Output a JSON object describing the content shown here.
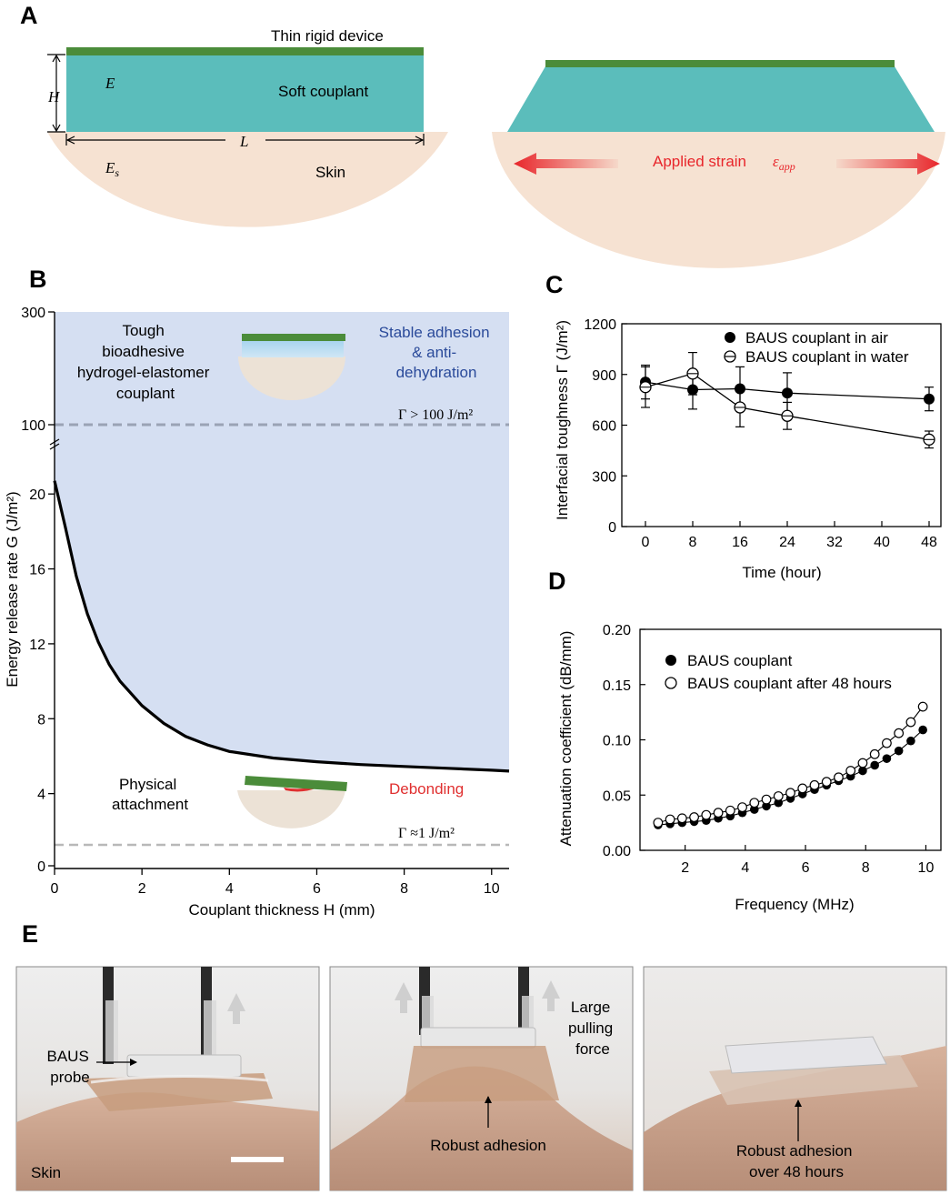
{
  "colors": {
    "device_green": "#4b8c3a",
    "couplant_teal": "#5bbdbb",
    "skin_beige": "#f6e2d2",
    "region_blue": "#d5dff2",
    "curve_black": "#000000",
    "debond_red": "#e03030",
    "stable_blue": "#2a4a9a",
    "dash_gray": "#9aa3b5",
    "arrow_red": "#e8262b"
  },
  "panelA": {
    "label": "A",
    "device": "Thin rigid device",
    "E": "E",
    "couplant": "Soft couplant",
    "H": "H",
    "L": "L",
    "Es_main": "E",
    "Es_sub": "s",
    "skin": "Skin",
    "strain_text": "Applied strain",
    "strain_sym_main": "ε",
    "strain_sym_sub": "app"
  },
  "panelB": {
    "label": "B",
    "tough_lines": [
      "Tough",
      "bioadhesive",
      "hydrogel-elastomer",
      "couplant"
    ],
    "stable_lines": [
      "Stable adhesion",
      "& anti-",
      "dehydration"
    ],
    "gamma_high": "Γ > 100 J/m²",
    "physical_lines": [
      "Physical",
      "attachment"
    ],
    "debonding": "Debonding",
    "gamma_low": "Γ ≈1 J/m²"
  },
  "panelE": {
    "label": "E",
    "baus_lines": [
      "BAUS",
      "probe"
    ],
    "skin": "Skin",
    "pull_lines": [
      "Large",
      "pulling",
      "force"
    ],
    "robust": "Robust adhesion",
    "robust48_lines": [
      "Robust adhesion",
      "over 48 hours"
    ]
  },
  "chart_data": [
    {
      "id": "B",
      "type": "line",
      "title": "",
      "xlabel": "Couplant thickness H (mm)",
      "ylabel": "Energy release rate G (J/m²)",
      "xlim": [
        0,
        10.4
      ],
      "ylim_lower": [
        0,
        22
      ],
      "ylim_upper": [
        100,
        300
      ],
      "x_ticks": [
        0,
        2,
        4,
        6,
        8,
        10
      ],
      "y_ticks": [
        0,
        4,
        8,
        12,
        16,
        20,
        100,
        300
      ],
      "series": [
        {
          "name": "G",
          "x": [
            0,
            0.25,
            0.5,
            0.75,
            1,
            1.25,
            1.5,
            2,
            2.5,
            3,
            3.5,
            4,
            5,
            6,
            7,
            8,
            9,
            10,
            10.4
          ],
          "y": [
            20.7,
            18.2,
            15.6,
            13.6,
            12.1,
            10.9,
            10.0,
            8.7,
            7.75,
            7.05,
            6.6,
            6.25,
            5.9,
            5.7,
            5.55,
            5.45,
            5.35,
            5.25,
            5.2
          ]
        }
      ],
      "thresholds": [
        100,
        1
      ]
    },
    {
      "id": "C",
      "type": "line",
      "xlabel": "Time (hour)",
      "ylabel": "Interfacial toughness Γ (J/m²)",
      "xlim": [
        -4,
        50
      ],
      "ylim": [
        0,
        1200
      ],
      "x_ticks": [
        0,
        8,
        16,
        24,
        32,
        40,
        48
      ],
      "y_ticks": [
        0,
        300,
        600,
        900,
        1200
      ],
      "series": [
        {
          "name": "BAUS couplant in air",
          "marker": "filled",
          "x": [
            0,
            8,
            16,
            24,
            48
          ],
          "y": [
            855,
            810,
            815,
            790,
            755
          ],
          "err": [
            100,
            115,
            130,
            120,
            70
          ]
        },
        {
          "name": "BAUS couplant in water",
          "marker": "open",
          "x": [
            0,
            8,
            16,
            24,
            48
          ],
          "y": [
            825,
            905,
            705,
            655,
            515
          ],
          "err": [
            120,
            125,
            115,
            80,
            50
          ]
        }
      ]
    },
    {
      "id": "D",
      "type": "line",
      "xlabel": "Frequency (MHz)",
      "ylabel": "Attenuation coefficient (dB/mm)",
      "xlim": [
        0.5,
        10.5
      ],
      "ylim": [
        0,
        0.2
      ],
      "x_ticks": [
        2,
        4,
        6,
        8,
        10
      ],
      "y_ticks": [
        0.0,
        0.05,
        0.1,
        0.15,
        0.2
      ],
      "y_tick_labels": [
        "0.00",
        "0.05",
        "0.10",
        "0.15",
        "0.20"
      ],
      "series": [
        {
          "name": "BAUS couplant",
          "marker": "filled",
          "x": [
            1.1,
            1.5,
            1.9,
            2.3,
            2.7,
            3.1,
            3.5,
            3.9,
            4.3,
            4.7,
            5.1,
            5.5,
            5.9,
            6.3,
            6.7,
            7.1,
            7.5,
            7.9,
            8.3,
            8.7,
            9.1,
            9.5,
            9.9
          ],
          "y": [
            0.023,
            0.024,
            0.025,
            0.026,
            0.027,
            0.029,
            0.031,
            0.034,
            0.037,
            0.04,
            0.043,
            0.047,
            0.051,
            0.055,
            0.059,
            0.063,
            0.067,
            0.072,
            0.077,
            0.083,
            0.09,
            0.099,
            0.109
          ]
        },
        {
          "name": "BAUS couplant after 48 hours",
          "marker": "open",
          "x": [
            1.1,
            1.5,
            1.9,
            2.3,
            2.7,
            3.1,
            3.5,
            3.9,
            4.3,
            4.7,
            5.1,
            5.5,
            5.9,
            6.3,
            6.7,
            7.1,
            7.5,
            7.9,
            8.3,
            8.7,
            9.1,
            9.5,
            9.9
          ],
          "y": [
            0.025,
            0.028,
            0.029,
            0.03,
            0.032,
            0.034,
            0.036,
            0.039,
            0.043,
            0.046,
            0.049,
            0.052,
            0.056,
            0.059,
            0.062,
            0.066,
            0.072,
            0.079,
            0.087,
            0.097,
            0.106,
            0.116,
            0.13
          ]
        }
      ]
    }
  ],
  "panelC_label": "C",
  "panelD_label": "D"
}
